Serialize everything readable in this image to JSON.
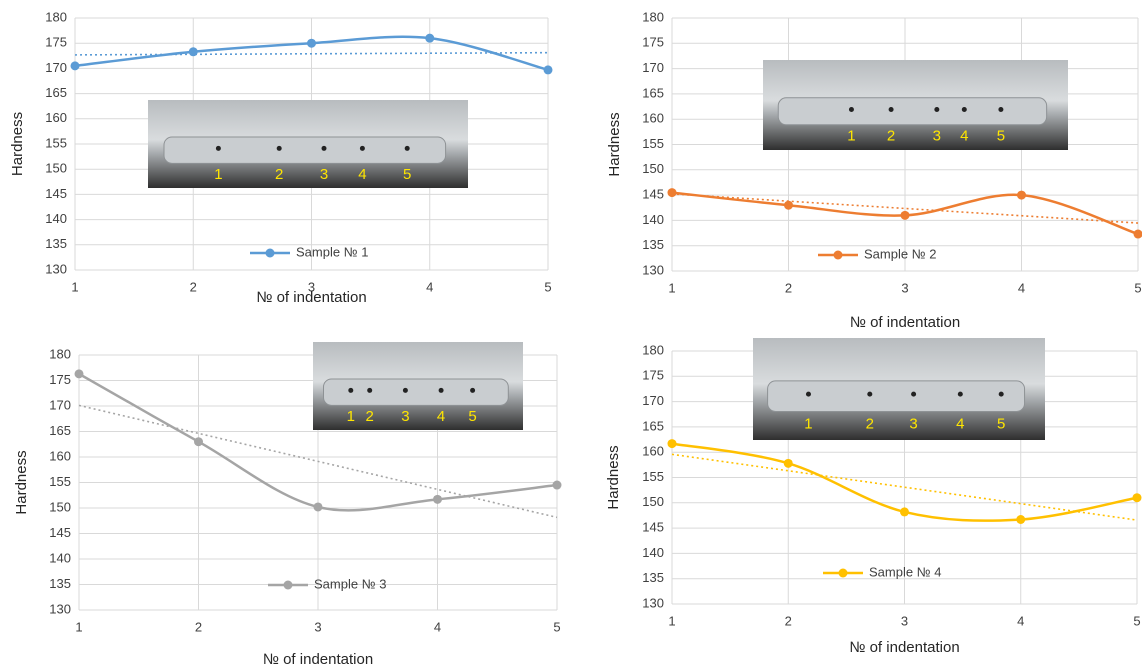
{
  "chart_data": [
    {
      "type": "line",
      "categories": [
        "1",
        "2",
        "3",
        "4",
        "5"
      ],
      "xlabel": "№ of indentation",
      "ylabel": "Hardness",
      "series": [
        {
          "name": "Sample № 1",
          "color": "#5b9bd5",
          "values": [
            170.5,
            173.3,
            175,
            176,
            169.7
          ]
        }
      ],
      "ylim": [
        130,
        180
      ],
      "yticks": [
        130,
        135,
        140,
        145,
        150,
        155,
        160,
        165,
        170,
        175,
        180
      ],
      "grid": true,
      "smooth": true,
      "trendline": true
    },
    {
      "type": "line",
      "categories": [
        "1",
        "2",
        "3",
        "4",
        "5"
      ],
      "xlabel": "№ of indentation",
      "ylabel": "Hardness",
      "series": [
        {
          "name": "Sample № 2",
          "color": "#ed7d31",
          "values": [
            145.5,
            143,
            141,
            145,
            137.3
          ]
        }
      ],
      "ylim": [
        130,
        180
      ],
      "yticks": [
        130,
        135,
        140,
        145,
        150,
        155,
        160,
        165,
        170,
        175,
        180
      ],
      "grid": true,
      "smooth": true,
      "trendline": true
    },
    {
      "type": "line",
      "categories": [
        "1",
        "2",
        "3",
        "4",
        "5"
      ],
      "xlabel": "№ of indentation",
      "ylabel": "Hardness",
      "series": [
        {
          "name": "Sample № 3",
          "color": "#a5a5a5",
          "values": [
            176.3,
            163,
            150.2,
            151.7,
            154.5
          ]
        }
      ],
      "ylim": [
        130,
        180
      ],
      "yticks": [
        130,
        135,
        140,
        145,
        150,
        155,
        160,
        165,
        170,
        175,
        180
      ],
      "grid": true,
      "smooth": true,
      "trendline": true
    },
    {
      "type": "line",
      "categories": [
        "1",
        "2",
        "3",
        "4",
        "5"
      ],
      "xlabel": "№ of indentation",
      "ylabel": "Hardness",
      "series": [
        {
          "name": "Sample № 4",
          "color": "#ffc000",
          "values": [
            161.7,
            157.8,
            148.2,
            146.7,
            151
          ]
        }
      ],
      "ylim": [
        130,
        180
      ],
      "yticks": [
        130,
        135,
        140,
        145,
        150,
        155,
        160,
        165,
        170,
        175,
        180
      ],
      "grid": true,
      "smooth": true,
      "trendline": true
    }
  ]
}
